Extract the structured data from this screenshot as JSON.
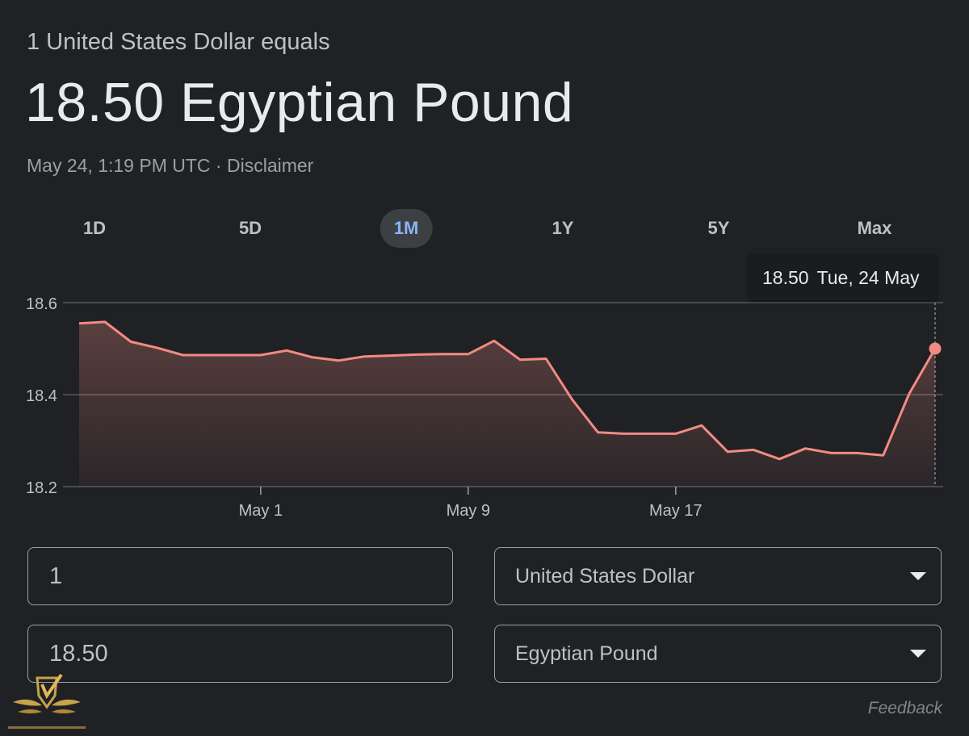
{
  "header": {
    "subtitle": "1 United States Dollar equals",
    "headline": "18.50 Egyptian Pound",
    "timestamp": "May 24, 1:19 PM UTC",
    "separator": " · ",
    "disclaimer": "Disclaimer"
  },
  "tabs": [
    {
      "label": "1D",
      "active": false
    },
    {
      "label": "5D",
      "active": false
    },
    {
      "label": "1M",
      "active": true
    },
    {
      "label": "1Y",
      "active": false
    },
    {
      "label": "5Y",
      "active": false
    },
    {
      "label": "Max",
      "active": false
    }
  ],
  "tooltip": {
    "value": "18.50",
    "date": "Tue, 24 May"
  },
  "chart_data": {
    "type": "area",
    "title": "",
    "xlabel": "",
    "ylabel": "",
    "ylim": [
      18.2,
      18.6
    ],
    "yticks": [
      "18.6",
      "18.4",
      "18.2"
    ],
    "xticks": [
      {
        "label": "May 1",
        "index": 7
      },
      {
        "label": "May 9",
        "index": 15
      },
      {
        "label": "May 17",
        "index": 23
      }
    ],
    "grid": true,
    "line_color": "#f28b82",
    "values": [
      18.555,
      18.558,
      18.515,
      18.502,
      18.486,
      18.486,
      18.486,
      18.486,
      18.496,
      18.481,
      18.474,
      18.483,
      18.485,
      18.487,
      18.488,
      18.488,
      18.517,
      18.476,
      18.478,
      18.39,
      18.318,
      18.315,
      18.315,
      18.315,
      18.333,
      18.276,
      18.28,
      18.26,
      18.283,
      18.273,
      18.273,
      18.268,
      18.402,
      18.5
    ],
    "highlight_index": 33
  },
  "converter": {
    "from_amount": "1",
    "to_amount": "18.50",
    "from_currency": "United States Dollar",
    "to_currency": "Egyptian Pound"
  },
  "footer": {
    "feedback": "Feedback"
  },
  "colors": {
    "background": "#202124",
    "accent": "#8ab4f8",
    "line": "#f28b82"
  }
}
